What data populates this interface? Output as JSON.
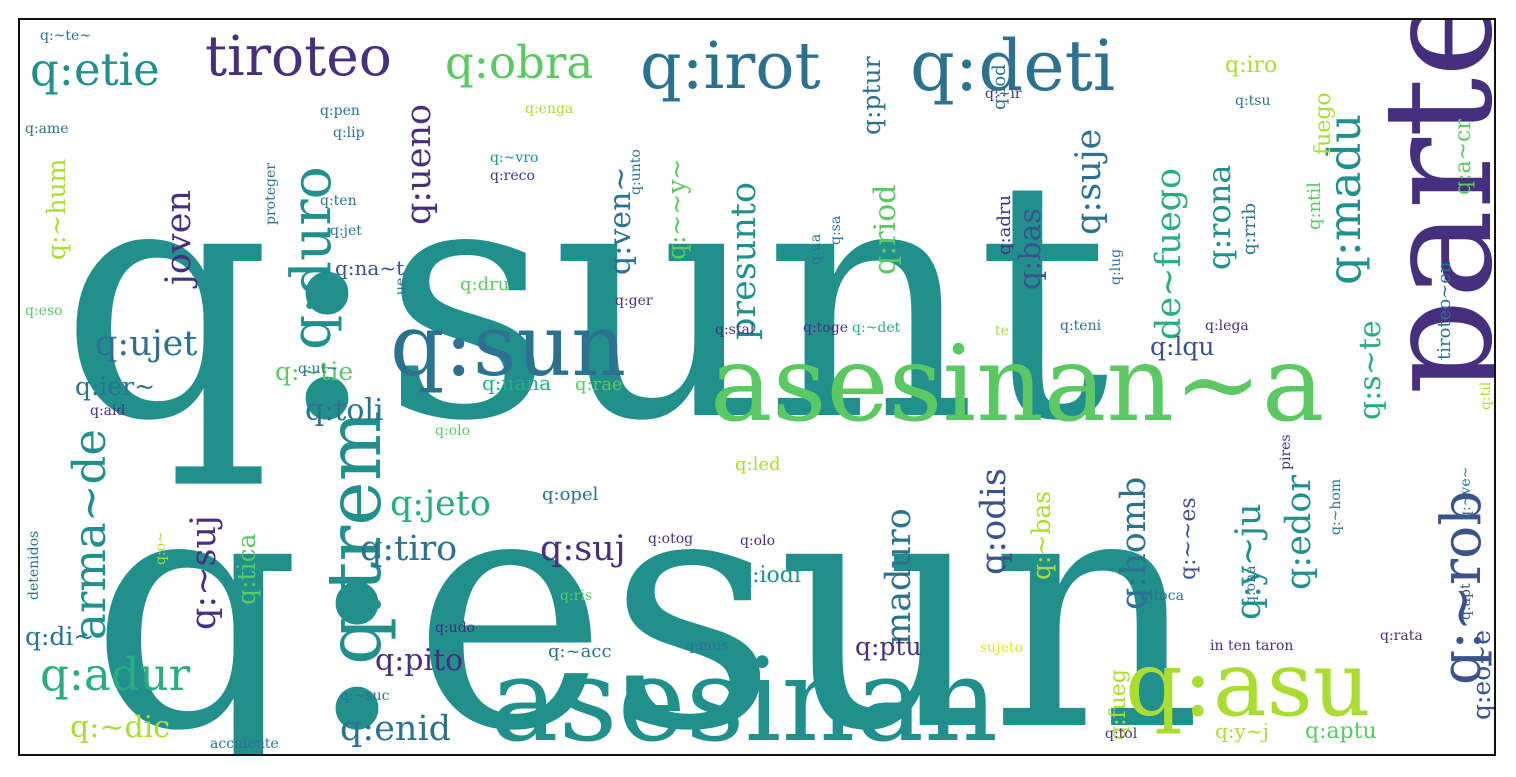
{
  "background_color": "#ffffff",
  "border_color": "#111111",
  "palette": {
    "deep_purple": "#46307e",
    "blue": "#3b528b",
    "teal_blue": "#2c728e",
    "teal": "#21908d",
    "green_teal": "#27ad81",
    "green": "#5cc863",
    "lime": "#aadc32",
    "yellow": "#e2e418"
  },
  "words": [
    {
      "text": "q:sunt",
      "color": "#21908d"
    },
    {
      "text": "q:esun",
      "color": "#21908d"
    },
    {
      "text": "parte",
      "color": "#46307e"
    },
    {
      "text": "asesinan~a",
      "color": "#5cc863"
    },
    {
      "text": "asesinan",
      "color": "#21908d"
    },
    {
      "text": "q:sun",
      "color": "#2c728e"
    },
    {
      "text": "q:asu",
      "color": "#aadc32"
    },
    {
      "text": "q:deti",
      "color": "#2c728e"
    },
    {
      "text": "q:irot",
      "color": "#2c728e"
    },
    {
      "text": "tiroteo",
      "color": "#46307e"
    },
    {
      "text": "q:etie",
      "color": "#21908d"
    },
    {
      "text": "q:obra",
      "color": "#5cc863"
    },
    {
      "text": "q:trem",
      "color": "#21908d"
    },
    {
      "text": "q:duro",
      "color": "#21908d"
    },
    {
      "text": "q:~rob",
      "color": "#3b528b"
    },
    {
      "text": "q:madu",
      "color": "#21908d"
    },
    {
      "text": "arma~de",
      "color": "#21908d"
    },
    {
      "text": "q:adur",
      "color": "#27ad81"
    },
    {
      "text": "q:ujet",
      "color": "#2c728e"
    },
    {
      "text": "joven",
      "color": "#46307e"
    },
    {
      "text": "q:ueno",
      "color": "#46307e"
    },
    {
      "text": "presunto",
      "color": "#21908d"
    },
    {
      "text": "q:suje",
      "color": "#2c728e"
    },
    {
      "text": "de~fuego",
      "color": "#27ad81"
    },
    {
      "text": "q:rona",
      "color": "#21908d"
    },
    {
      "text": "q:bas",
      "color": "#3b528b"
    },
    {
      "text": "q:riod",
      "color": "#5cc863"
    },
    {
      "text": "q:ven~",
      "color": "#2c728e"
    },
    {
      "text": "q:~~y~",
      "color": "#5cc863"
    },
    {
      "text": "q:toli",
      "color": "#2c728e"
    },
    {
      "text": "q:jeto",
      "color": "#27ad81"
    },
    {
      "text": "q:tiro",
      "color": "#2c728e"
    },
    {
      "text": "q:suj",
      "color": "#46307e"
    },
    {
      "text": "q:pito",
      "color": "#46307e"
    },
    {
      "text": "q:enid",
      "color": "#2c728e"
    },
    {
      "text": "q:~dic",
      "color": "#aadc32"
    },
    {
      "text": "q:~suj",
      "color": "#46307e"
    },
    {
      "text": "q:tica",
      "color": "#5cc863"
    },
    {
      "text": "maduro",
      "color": "#2c728e"
    },
    {
      "text": "q:odis",
      "color": "#3b528b"
    },
    {
      "text": "q:homb",
      "color": "#2c728e"
    },
    {
      "text": "q:~bas",
      "color": "#aadc32"
    },
    {
      "text": "q:y~ju",
      "color": "#21908d"
    },
    {
      "text": "q:edor",
      "color": "#21908d"
    },
    {
      "text": "q:s~te",
      "color": "#27ad81"
    },
    {
      "text": "q:lqu",
      "color": "#3b528b"
    },
    {
      "text": "q:~tie",
      "color": "#5cc863"
    },
    {
      "text": "q:na~t",
      "color": "#3b528b"
    },
    {
      "text": "q:ier~",
      "color": "#2c728e"
    },
    {
      "text": "q:di~",
      "color": "#2c728e"
    },
    {
      "text": "q:~hum",
      "color": "#aadc32"
    },
    {
      "text": "q:ptu",
      "color": "#46307e"
    },
    {
      "text": "q:iodi",
      "color": "#21908d"
    },
    {
      "text": "q:~~es",
      "color": "#3b528b"
    },
    {
      "text": "q:eo~e",
      "color": "#3b528b"
    },
    {
      "text": "q:fueg",
      "color": "#aadc32"
    },
    {
      "text": "q:y~j",
      "color": "#aadc32"
    },
    {
      "text": "q:aptu",
      "color": "#5cc863"
    },
    {
      "text": "q:iro",
      "color": "#aadc32"
    },
    {
      "text": "fuego",
      "color": "#aadc32"
    },
    {
      "text": "tiroteo~en",
      "color": "#2c728e"
    },
    {
      "text": "q:a~cr",
      "color": "#5cc863"
    },
    {
      "text": "q:ntil",
      "color": "#5cc863"
    },
    {
      "text": "q:rrib",
      "color": "#2c728e"
    },
    {
      "text": "q:ptur",
      "color": "#2c728e"
    },
    {
      "text": "q:iod",
      "color": "#2c728e"
    },
    {
      "text": "q:adru",
      "color": "#46307e"
    },
    {
      "text": "q:~acc",
      "color": "#2c728e"
    },
    {
      "text": "q:led",
      "color": "#aadc32"
    },
    {
      "text": "q:opel",
      "color": "#2c728e"
    },
    {
      "text": "q:dru",
      "color": "#5cc863"
    },
    {
      "text": "q:uana",
      "color": "#27ad81"
    },
    {
      "text": "q:rae",
      "color": "#5cc863"
    },
    {
      "text": "q:toca",
      "color": "#2c728e"
    },
    {
      "text": "q:~ve~",
      "color": "#2c728e"
    },
    {
      "text": "q:rata",
      "color": "#46307e"
    },
    {
      "text": "q:tol",
      "color": "#46307e"
    },
    {
      "text": "q:apt",
      "color": "#3b528b"
    },
    {
      "text": "q:olo",
      "color": "#46307e"
    },
    {
      "text": "q:ris",
      "color": "#5cc863"
    },
    {
      "text": "q:otog",
      "color": "#46307e"
    },
    {
      "text": "q:udo",
      "color": "#46307e"
    },
    {
      "text": "q:mus",
      "color": "#2c728e"
    },
    {
      "text": "sujeto",
      "color": "#e2e418"
    },
    {
      "text": "q:~suc",
      "color": "#2c728e"
    },
    {
      "text": "accidente",
      "color": "#2c728e"
    },
    {
      "text": "q:ona",
      "color": "#2c728e"
    },
    {
      "text": "q:~hom",
      "color": "#2c728e"
    },
    {
      "text": "in ten taron",
      "color": "#46307e"
    },
    {
      "text": "q:pen",
      "color": "#2c728e"
    },
    {
      "text": "q:lip",
      "color": "#2c728e"
    },
    {
      "text": "q:~ir",
      "color": "#46307e"
    },
    {
      "text": "q:tsu",
      "color": "#2c728e"
    },
    {
      "text": "q:enga",
      "color": "#aadc32"
    },
    {
      "text": "q:ame",
      "color": "#2c728e"
    },
    {
      "text": "q:~te~",
      "color": "#2c728e"
    },
    {
      "text": "q:~vro",
      "color": "#21908d"
    },
    {
      "text": "q:reco",
      "color": "#46307e"
    },
    {
      "text": "q:unto",
      "color": "#2c728e"
    },
    {
      "text": "q:ten",
      "color": "#2c728e"
    },
    {
      "text": "proteger",
      "color": "#2c728e"
    },
    {
      "text": "q:jet",
      "color": "#2c728e"
    },
    {
      "text": "q:ua",
      "color": "#2c728e"
    },
    {
      "text": "q:lug",
      "color": "#2c728e"
    },
    {
      "text": "q:lega",
      "color": "#46307e"
    },
    {
      "text": "q:teni",
      "color": "#2c728e"
    },
    {
      "text": "te",
      "color": "#aadc32"
    },
    {
      "text": "q:~det",
      "color": "#27ad81"
    },
    {
      "text": "q:toge",
      "color": "#46307e"
    },
    {
      "text": "q:stal",
      "color": "#46307e"
    },
    {
      "text": "q:ger",
      "color": "#46307e"
    },
    {
      "text": "q:ut~",
      "color": "#2c728e"
    },
    {
      "text": "q:aid",
      "color": "#46307e"
    },
    {
      "text": "q:eso",
      "color": "#5cc863"
    },
    {
      "text": "q:olo",
      "color": "#5cc863"
    },
    {
      "text": "detenidos",
      "color": "#2c728e"
    },
    {
      "text": "q:o~",
      "color": "#aadc32"
    },
    {
      "text": "pires",
      "color": "#46307e"
    },
    {
      "text": "q:til",
      "color": "#aadc32"
    },
    {
      "text": "ue",
      "color": "#2c728e"
    },
    {
      "text": "q:sa",
      "color": "#2c728e"
    }
  ]
}
